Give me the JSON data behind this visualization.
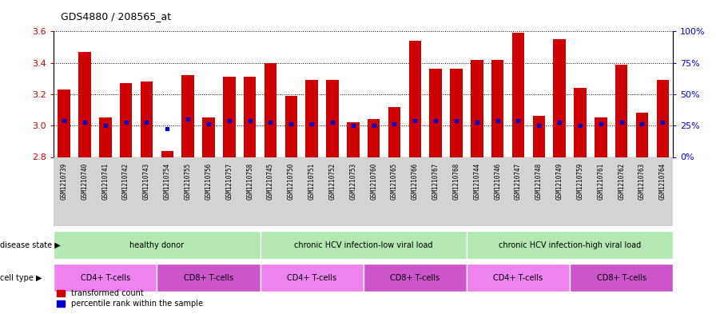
{
  "title": "GDS4880 / 208565_at",
  "samples": [
    "GSM1210739",
    "GSM1210740",
    "GSM1210741",
    "GSM1210742",
    "GSM1210743",
    "GSM1210754",
    "GSM1210755",
    "GSM1210756",
    "GSM1210757",
    "GSM1210758",
    "GSM1210745",
    "GSM1210750",
    "GSM1210751",
    "GSM1210752",
    "GSM1210753",
    "GSM1210760",
    "GSM1210765",
    "GSM1210766",
    "GSM1210767",
    "GSM1210768",
    "GSM1210744",
    "GSM1210746",
    "GSM1210747",
    "GSM1210748",
    "GSM1210749",
    "GSM1210759",
    "GSM1210761",
    "GSM1210762",
    "GSM1210763",
    "GSM1210764"
  ],
  "bar_values": [
    3.23,
    3.47,
    3.05,
    3.27,
    3.28,
    2.84,
    3.32,
    3.05,
    3.31,
    3.31,
    3.4,
    3.19,
    3.29,
    3.29,
    3.02,
    3.04,
    3.12,
    3.54,
    3.36,
    3.36,
    3.42,
    3.42,
    3.59,
    3.06,
    3.55,
    3.24,
    3.05,
    3.39,
    3.08,
    3.29
  ],
  "percentile_values": [
    3.03,
    3.02,
    3.0,
    3.02,
    3.02,
    2.98,
    3.04,
    3.01,
    3.03,
    3.03,
    3.02,
    3.01,
    3.01,
    3.02,
    3.0,
    3.0,
    3.01,
    3.03,
    3.03,
    3.03,
    3.02,
    3.03,
    3.03,
    3.0,
    3.02,
    3.0,
    3.01,
    3.02,
    3.01,
    3.02
  ],
  "ylim": [
    2.8,
    3.6
  ],
  "yticks": [
    2.8,
    3.0,
    3.2,
    3.4,
    3.6
  ],
  "bar_color": "#cc0000",
  "dot_color": "#0000cc",
  "tick_bg_color": "#d3d3d3",
  "disease_state_color": "#b3e8b3",
  "cell_cd4_color": "#ee82ee",
  "cell_cd8_color": "#cc55cc",
  "disease_groups": [
    {
      "label": "healthy donor",
      "start": 0,
      "end": 9
    },
    {
      "label": "chronic HCV infection-low viral load",
      "start": 10,
      "end": 19
    },
    {
      "label": "chronic HCV infection-high viral load",
      "start": 20,
      "end": 29
    }
  ],
  "cell_groups": [
    {
      "label": "CD4+ T-cells",
      "start": 0,
      "end": 4,
      "type": "cd4"
    },
    {
      "label": "CD8+ T-cells",
      "start": 5,
      "end": 9,
      "type": "cd8"
    },
    {
      "label": "CD4+ T-cells",
      "start": 10,
      "end": 14,
      "type": "cd4"
    },
    {
      "label": "CD8+ T-cells",
      "start": 15,
      "end": 19,
      "type": "cd8"
    },
    {
      "label": "CD4+ T-cells",
      "start": 20,
      "end": 24,
      "type": "cd4"
    },
    {
      "label": "CD8+ T-cells",
      "start": 25,
      "end": 29,
      "type": "cd8"
    }
  ]
}
